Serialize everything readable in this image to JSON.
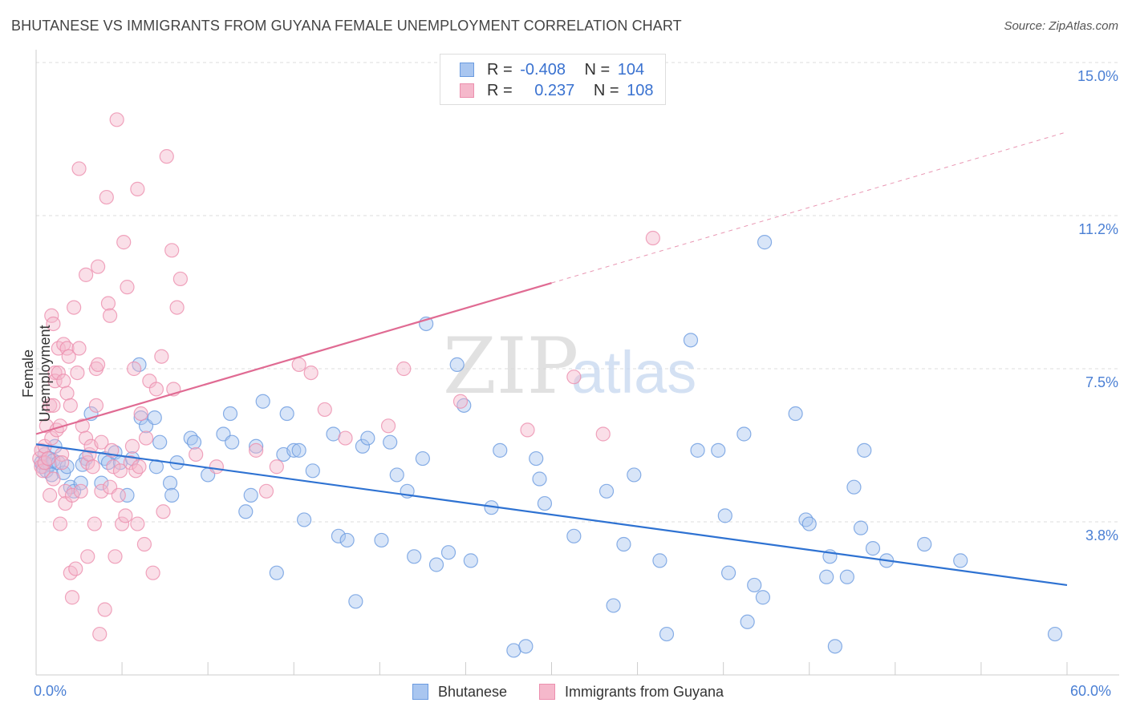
{
  "title": "BHUTANESE VS IMMIGRANTS FROM GUYANA FEMALE UNEMPLOYMENT CORRELATION CHART",
  "source": "Source: ZipAtlas.com",
  "watermark": {
    "part1": "ZIP",
    "part2": "atlas"
  },
  "legend": {
    "rows": [
      {
        "r_label": "R =",
        "r_value": "-0.408",
        "n_label": "N =",
        "n_value": "104"
      },
      {
        "r_label": "R =",
        "r_value": "0.237",
        "n_label": "N =",
        "n_value": "108"
      }
    ]
  },
  "colors": {
    "bhutanese_fill": "#a9c6f0",
    "bhutanese_stroke": "#6b9be0",
    "bhutanese_line": "#2e72d2",
    "guyana_fill": "#f5b8cb",
    "guyana_stroke": "#ec8fae",
    "guyana_line": "#e06b93",
    "tick_label": "#4a7fd4",
    "grid": "#dddddd"
  },
  "chart_data": {
    "type": "scatter",
    "title": "BHUTANESE VS IMMIGRANTS FROM GUYANA FEMALE UNEMPLOYMENT CORRELATION CHART",
    "xlabel": "",
    "ylabel": "Female Unemployment",
    "xlim": [
      0,
      60
    ],
    "ylim": [
      0,
      15
    ],
    "x_tick_labels": [
      "0.0%",
      "60.0%"
    ],
    "y_ticks": [
      3.75,
      7.5,
      11.25,
      15
    ],
    "y_tick_labels": [
      "3.8%",
      "7.5%",
      "11.2%",
      "15.0%"
    ],
    "grid": true,
    "legend_position": "top-center",
    "series": [
      {
        "name": "Bhutanese",
        "r": -0.408,
        "n": 104,
        "trend": {
          "x": [
            0,
            60
          ],
          "y": [
            5.65,
            2.2
          ]
        },
        "points": [
          [
            0.3,
            5.2
          ],
          [
            0.4,
            5.1
          ],
          [
            0.5,
            5.4
          ],
          [
            0.6,
            5.0
          ],
          [
            0.7,
            5.3
          ],
          [
            0.8,
            5.15
          ],
          [
            0.9,
            4.9
          ],
          [
            1.0,
            5.25
          ],
          [
            1.1,
            5.6
          ],
          [
            1.3,
            5.2
          ],
          [
            1.6,
            4.95
          ],
          [
            1.8,
            5.1
          ],
          [
            2.0,
            4.6
          ],
          [
            2.2,
            4.5
          ],
          [
            2.6,
            4.7
          ],
          [
            2.9,
            5.3
          ],
          [
            2.7,
            5.15
          ],
          [
            3.2,
            6.4
          ],
          [
            3.8,
            4.7
          ],
          [
            4.0,
            5.3
          ],
          [
            4.2,
            5.2
          ],
          [
            4.6,
            5.45
          ],
          [
            4.9,
            5.2
          ],
          [
            5.3,
            4.4
          ],
          [
            5.6,
            5.3
          ],
          [
            6.0,
            7.6
          ],
          [
            6.1,
            6.3
          ],
          [
            6.4,
            6.1
          ],
          [
            6.9,
            6.3
          ],
          [
            7.0,
            5.1
          ],
          [
            7.2,
            5.7
          ],
          [
            7.8,
            4.7
          ],
          [
            7.9,
            4.4
          ],
          [
            8.2,
            5.2
          ],
          [
            9.0,
            5.8
          ],
          [
            9.2,
            5.7
          ],
          [
            10.0,
            4.9
          ],
          [
            10.9,
            5.9
          ],
          [
            11.3,
            6.4
          ],
          [
            11.4,
            5.7
          ],
          [
            12.5,
            4.4
          ],
          [
            12.2,
            4.0
          ],
          [
            12.8,
            5.6
          ],
          [
            13.2,
            6.7
          ],
          [
            14.0,
            2.5
          ],
          [
            14.4,
            5.4
          ],
          [
            14.6,
            6.4
          ],
          [
            15.0,
            5.5
          ],
          [
            15.3,
            5.5
          ],
          [
            15.6,
            3.8
          ],
          [
            16.1,
            5.0
          ],
          [
            17.3,
            5.9
          ],
          [
            17.6,
            3.4
          ],
          [
            18.1,
            3.3
          ],
          [
            18.6,
            1.8
          ],
          [
            19.0,
            5.6
          ],
          [
            19.3,
            5.8
          ],
          [
            20.1,
            3.3
          ],
          [
            20.6,
            5.7
          ],
          [
            21.0,
            4.9
          ],
          [
            21.6,
            4.5
          ],
          [
            22.0,
            2.9
          ],
          [
            22.5,
            5.3
          ],
          [
            22.7,
            8.6
          ],
          [
            23.3,
            2.7
          ],
          [
            24.0,
            3.0
          ],
          [
            24.5,
            7.6
          ],
          [
            24.9,
            6.6
          ],
          [
            25.3,
            2.8
          ],
          [
            26.5,
            4.1
          ],
          [
            27.0,
            5.5
          ],
          [
            27.8,
            0.6
          ],
          [
            28.5,
            0.7
          ],
          [
            29.1,
            5.3
          ],
          [
            29.3,
            4.8
          ],
          [
            29.6,
            4.2
          ],
          [
            31.3,
            3.4
          ],
          [
            33.2,
            4.5
          ],
          [
            33.6,
            1.7
          ],
          [
            34.2,
            3.2
          ],
          [
            34.8,
            4.9
          ],
          [
            36.3,
            2.8
          ],
          [
            36.7,
            1.0
          ],
          [
            38.1,
            8.2
          ],
          [
            38.5,
            5.5
          ],
          [
            39.7,
            5.5
          ],
          [
            40.1,
            3.9
          ],
          [
            40.3,
            2.5
          ],
          [
            41.2,
            5.9
          ],
          [
            41.4,
            1.3
          ],
          [
            41.8,
            2.2
          ],
          [
            42.3,
            1.9
          ],
          [
            42.4,
            10.6
          ],
          [
            44.2,
            6.4
          ],
          [
            44.8,
            3.8
          ],
          [
            45.0,
            3.7
          ],
          [
            46.0,
            2.4
          ],
          [
            46.2,
            2.9
          ],
          [
            46.5,
            0.7
          ],
          [
            47.2,
            2.4
          ],
          [
            47.6,
            4.6
          ],
          [
            48.0,
            3.6
          ],
          [
            48.2,
            5.5
          ],
          [
            48.7,
            3.1
          ],
          [
            49.5,
            2.8
          ],
          [
            51.7,
            3.2
          ],
          [
            53.8,
            2.8
          ],
          [
            59.3,
            1.0
          ]
        ]
      },
      {
        "name": "Immigrants from Guyana",
        "r": 0.237,
        "n": 108,
        "trend": {
          "x": [
            0,
            30
          ],
          "y": [
            5.9,
            9.6
          ]
        },
        "trend_dashed": {
          "x": [
            30,
            60
          ],
          "y": [
            9.6,
            13.3
          ]
        },
        "points": [
          [
            0.2,
            5.3
          ],
          [
            0.3,
            5.1
          ],
          [
            0.3,
            5.5
          ],
          [
            0.4,
            5.0
          ],
          [
            0.5,
            5.6
          ],
          [
            0.5,
            5.2
          ],
          [
            0.6,
            6.1
          ],
          [
            0.7,
            5.3
          ],
          [
            0.8,
            4.4
          ],
          [
            0.8,
            6.6
          ],
          [
            0.9,
            5.8
          ],
          [
            0.9,
            8.8
          ],
          [
            1.0,
            8.6
          ],
          [
            1.0,
            6.6
          ],
          [
            1.0,
            4.8
          ],
          [
            1.1,
            7.4
          ],
          [
            1.1,
            7.2
          ],
          [
            1.2,
            6.0
          ],
          [
            1.3,
            8.0
          ],
          [
            1.3,
            7.4
          ],
          [
            1.4,
            6.1
          ],
          [
            1.4,
            3.7
          ],
          [
            1.5,
            5.4
          ],
          [
            1.5,
            5.2
          ],
          [
            1.6,
            7.2
          ],
          [
            1.6,
            8.1
          ],
          [
            1.7,
            4.5
          ],
          [
            1.7,
            4.2
          ],
          [
            1.8,
            8.0
          ],
          [
            1.8,
            6.9
          ],
          [
            1.9,
            7.8
          ],
          [
            2.0,
            6.6
          ],
          [
            2.0,
            2.5
          ],
          [
            2.1,
            1.9
          ],
          [
            2.1,
            4.4
          ],
          [
            2.2,
            9.0
          ],
          [
            2.3,
            2.6
          ],
          [
            2.4,
            7.4
          ],
          [
            2.5,
            12.4
          ],
          [
            2.5,
            8.0
          ],
          [
            2.6,
            4.5
          ],
          [
            2.7,
            6.1
          ],
          [
            2.9,
            9.8
          ],
          [
            2.9,
            5.8
          ],
          [
            3.0,
            5.2
          ],
          [
            3.0,
            2.9
          ],
          [
            3.1,
            5.4
          ],
          [
            3.2,
            5.6
          ],
          [
            3.3,
            5.1
          ],
          [
            3.4,
            3.7
          ],
          [
            3.5,
            6.6
          ],
          [
            3.5,
            7.5
          ],
          [
            3.6,
            7.6
          ],
          [
            3.6,
            10.0
          ],
          [
            3.7,
            1.0
          ],
          [
            3.8,
            4.5
          ],
          [
            3.8,
            5.7
          ],
          [
            4.0,
            1.6
          ],
          [
            4.1,
            11.7
          ],
          [
            4.2,
            9.1
          ],
          [
            4.3,
            8.8
          ],
          [
            4.3,
            4.6
          ],
          [
            4.4,
            5.5
          ],
          [
            4.5,
            5.1
          ],
          [
            4.6,
            2.9
          ],
          [
            4.7,
            13.6
          ],
          [
            4.8,
            4.4
          ],
          [
            4.9,
            5.0
          ],
          [
            5.0,
            3.7
          ],
          [
            5.1,
            10.6
          ],
          [
            5.2,
            3.9
          ],
          [
            5.3,
            9.5
          ],
          [
            5.5,
            5.2
          ],
          [
            5.6,
            5.6
          ],
          [
            5.7,
            7.5
          ],
          [
            5.8,
            5.0
          ],
          [
            5.9,
            11.9
          ],
          [
            5.9,
            3.7
          ],
          [
            6.0,
            5.1
          ],
          [
            6.1,
            6.4
          ],
          [
            6.3,
            3.2
          ],
          [
            6.4,
            5.8
          ],
          [
            6.6,
            7.2
          ],
          [
            6.8,
            2.5
          ],
          [
            7.0,
            7.0
          ],
          [
            7.3,
            7.8
          ],
          [
            7.4,
            4.0
          ],
          [
            7.6,
            12.7
          ],
          [
            7.9,
            10.4
          ],
          [
            8.0,
            7.0
          ],
          [
            8.2,
            9.0
          ],
          [
            8.4,
            9.7
          ],
          [
            9.3,
            5.4
          ],
          [
            10.5,
            5.1
          ],
          [
            12.8,
            5.5
          ],
          [
            13.4,
            4.5
          ],
          [
            14.0,
            5.1
          ],
          [
            15.3,
            7.6
          ],
          [
            16.0,
            7.4
          ],
          [
            16.8,
            6.5
          ],
          [
            18.0,
            5.8
          ],
          [
            20.5,
            6.1
          ],
          [
            21.4,
            7.5
          ],
          [
            24.7,
            6.7
          ],
          [
            28.6,
            6.0
          ],
          [
            31.3,
            7.3
          ],
          [
            33.0,
            5.9
          ],
          [
            35.9,
            10.7
          ]
        ]
      }
    ]
  },
  "bottom_legend": {
    "items": [
      "Bhutanese",
      "Immigrants from Guyana"
    ]
  }
}
